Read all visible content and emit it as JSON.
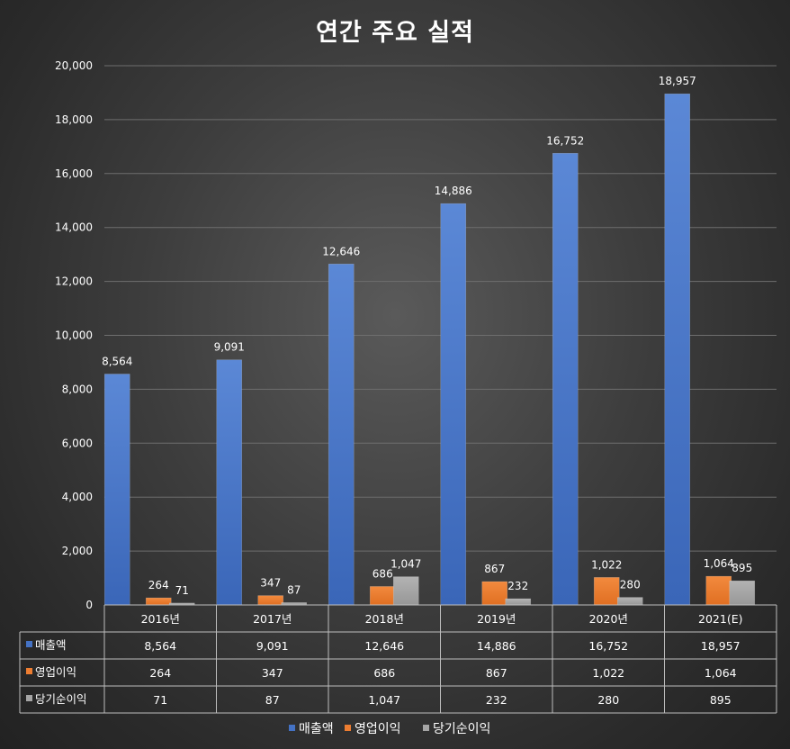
{
  "chart_data": {
    "type": "bar",
    "title": "연간 주요 실적",
    "categories": [
      "2016년",
      "2017년",
      "2018년",
      "2019년",
      "2020년",
      "2021(E)"
    ],
    "series": [
      {
        "name": "매출액",
        "color": "#4472C4",
        "values": [
          8564,
          9091,
          12646,
          14886,
          16752,
          18957
        ],
        "labels": [
          "8,564",
          "9,091",
          "12,646",
          "14,886",
          "16,752",
          "18,957"
        ]
      },
      {
        "name": "영업이익",
        "color": "#ED7D31",
        "values": [
          264,
          347,
          686,
          867,
          1022,
          1064
        ],
        "labels": [
          "264",
          "347",
          "686",
          "867",
          "1,022",
          "1,064"
        ]
      },
      {
        "name": "당기순이익",
        "color": "#A5A5A5",
        "values": [
          71,
          87,
          1047,
          232,
          280,
          895
        ],
        "labels": [
          "71",
          "87",
          "1,047",
          "232",
          "280",
          "895"
        ]
      }
    ],
    "ylim": [
      0,
      20000
    ],
    "yticks": [
      "0",
      "2,000",
      "4,000",
      "6,000",
      "8,000",
      "10,000",
      "12,000",
      "14,000",
      "16,000",
      "18,000",
      "20,000"
    ],
    "ytick_values": [
      0,
      2000,
      4000,
      6000,
      8000,
      10000,
      12000,
      14000,
      16000,
      18000,
      20000
    ],
    "grid": true,
    "data_table": true,
    "legend": "bottom"
  }
}
